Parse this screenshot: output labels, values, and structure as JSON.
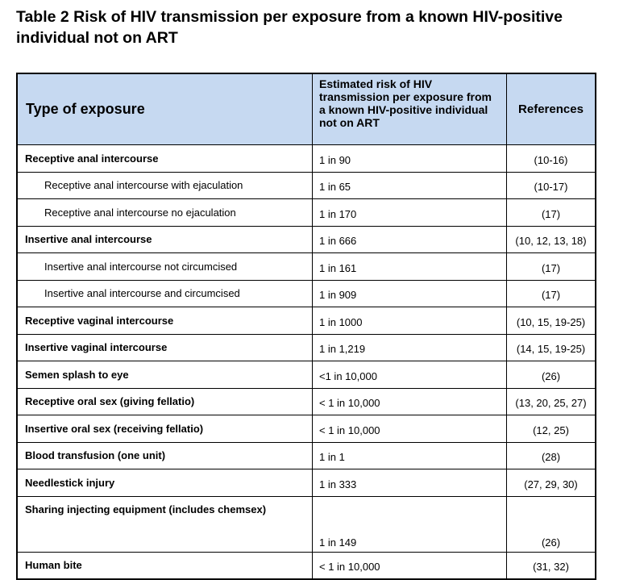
{
  "header": {
    "title": "Table 2 Risk of HIV transmission per exposure from a known HIV-positive individual not on ART"
  },
  "table": {
    "columns": [
      "Type of exposure",
      "Estimated risk of HIV transmission per exposure from a known HIV-positive individual not on ART",
      "References"
    ],
    "rows": [
      [
        "Receptive anal intercourse",
        "1 in 90",
        "(10-16)"
      ],
      [
        "Receptive anal intercourse with ejaculation",
        "1 in 65",
        "(10-17)"
      ],
      [
        "Receptive anal intercourse no ejaculation",
        "1 in 170",
        "(17)"
      ],
      [
        "Insertive anal intercourse",
        "1 in 666",
        "(10, 12, 13, 18)"
      ],
      [
        "Insertive anal intercourse not circumcised",
        "1 in 161",
        "(17)"
      ],
      [
        "Insertive anal intercourse and circumcised",
        "1 in 909",
        "(17)"
      ],
      [
        "Receptive vaginal intercourse",
        "1 in 1000",
        "(10, 15, 19-25)"
      ],
      [
        "Insertive vaginal intercourse",
        "1 in 1,219",
        "(14, 15, 19-25)"
      ],
      [
        "Semen splash to eye",
        "<1 in 10,000",
        "(26)"
      ],
      [
        "Receptive oral sex (giving fellatio)",
        "< 1 in 10,000",
        "(13, 20, 25, 27)"
      ],
      [
        "Insertive oral sex (receiving fellatio)",
        "< 1 in 10,000",
        "(12, 25)"
      ],
      [
        "Blood transfusion (one unit)",
        "1 in 1",
        "(28)"
      ],
      [
        "Needlestick injury",
        "1 in 333",
        "(27, 29, 30)"
      ],
      [
        "Sharing injecting equipment (includes chemsex)",
        "1 in 149",
        "(26)"
      ],
      [
        "Human bite",
        "< 1 in 10,000",
        "(31, 32)"
      ]
    ]
  }
}
